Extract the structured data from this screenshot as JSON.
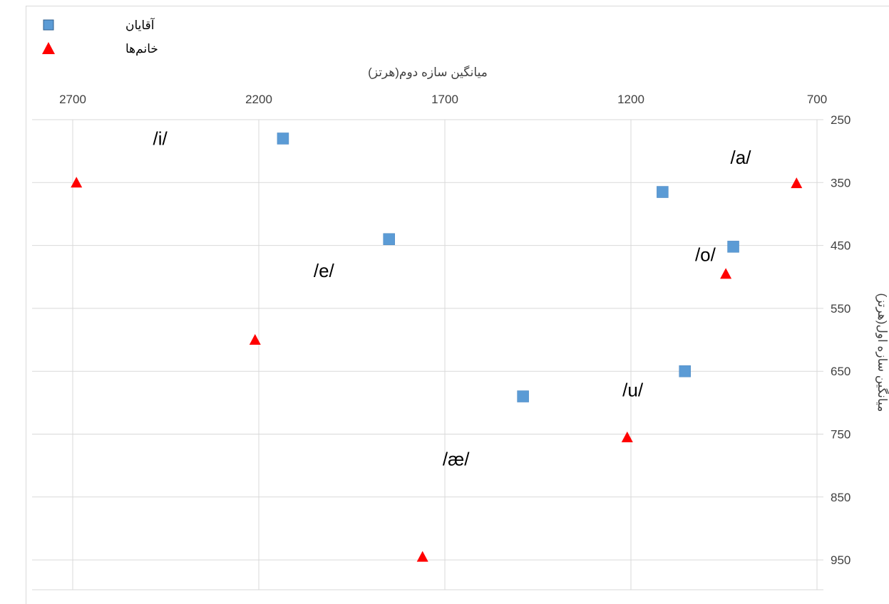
{
  "chart_data": {
    "type": "scatter",
    "xlabel": "میانگین سازه دوم(هرتز)",
    "ylabel": "میانگین سازه اول(هرتز)",
    "xlim": [
      2700,
      700
    ],
    "ylim": [
      250,
      1000
    ],
    "x_reversed": true,
    "y_reversed": true,
    "x_ticks": [
      "2700",
      "2200",
      "1700",
      "1200",
      "700"
    ],
    "y_ticks": [
      "250",
      "350",
      "450",
      "550",
      "650",
      "750",
      "850",
      "950"
    ],
    "grid": true,
    "legend_position": "top-left",
    "series": [
      {
        "name": "آقایان",
        "marker": "square",
        "color": "#5B9BD5",
        "points": [
          {
            "x": 2135,
            "y": 280
          },
          {
            "x": 1850,
            "y": 440
          },
          {
            "x": 1490,
            "y": 690
          },
          {
            "x": 1115,
            "y": 365
          },
          {
            "x": 1055,
            "y": 650
          },
          {
            "x": 925,
            "y": 452
          }
        ]
      },
      {
        "name": "خانم‌ها",
        "marker": "triangle",
        "color": "#FF0000",
        "points": [
          {
            "x": 2690,
            "y": 350
          },
          {
            "x": 2210,
            "y": 600
          },
          {
            "x": 1760,
            "y": 945
          },
          {
            "x": 1210,
            "y": 755
          },
          {
            "x": 945,
            "y": 495
          },
          {
            "x": 755,
            "y": 351
          }
        ]
      }
    ],
    "annotations": [
      {
        "text": "/i/",
        "x": 2465,
        "y": 290
      },
      {
        "text": "/a/",
        "x": 905,
        "y": 320
      },
      {
        "text": "/o/",
        "x": 1000,
        "y": 475
      },
      {
        "text": "/e/",
        "x": 2025,
        "y": 500
      },
      {
        "text": "/u/",
        "x": 1195,
        "y": 690
      },
      {
        "text": "/æ/",
        "x": 1670,
        "y": 800
      }
    ]
  }
}
